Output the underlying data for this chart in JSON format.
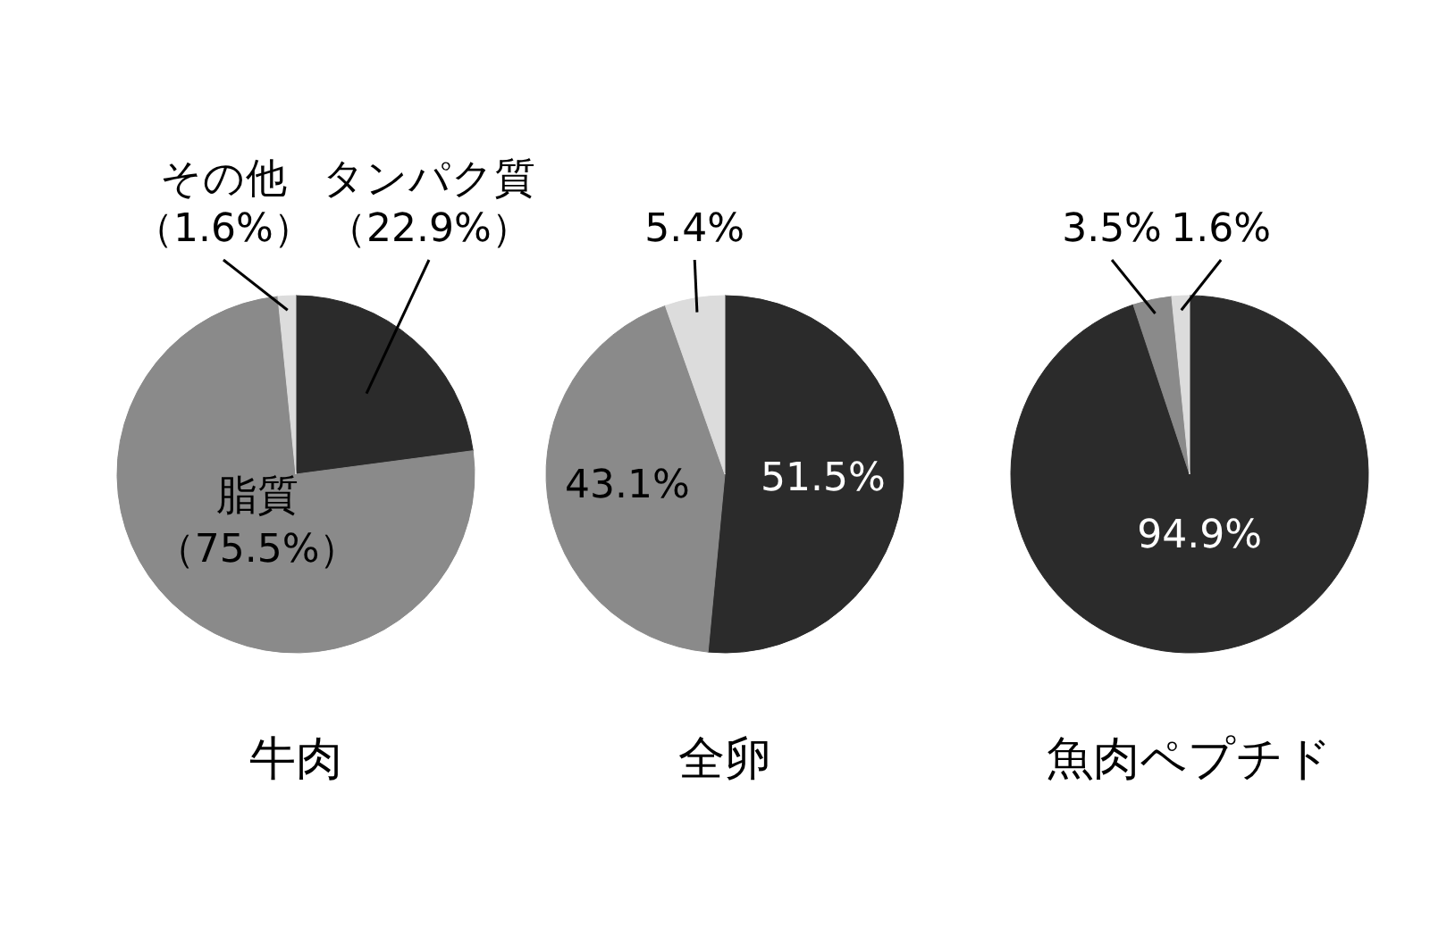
{
  "chart_data": [
    {
      "type": "pie",
      "title": "牛肉",
      "categories": [
        "タンパク質",
        "脂質",
        "その他"
      ],
      "values": [
        22.9,
        75.5,
        1.6
      ],
      "colors": [
        "#2b2b2b",
        "#8a8a8a",
        "#dcdcdc"
      ],
      "value_labels": [
        "（22.9%）",
        "（75.5%）",
        "（1.6%）"
      ]
    },
    {
      "type": "pie",
      "title": "全卵",
      "categories": [
        null,
        null,
        null
      ],
      "values": [
        51.5,
        43.1,
        5.4
      ],
      "colors": [
        "#2b2b2b",
        "#8a8a8a",
        "#dcdcdc"
      ],
      "value_labels": [
        "51.5%",
        "43.1%",
        "5.4%"
      ]
    },
    {
      "type": "pie",
      "title": "魚肉ペプチド",
      "categories": [
        null,
        null,
        null
      ],
      "values": [
        94.9,
        3.5,
        1.6
      ],
      "colors": [
        "#2b2b2b",
        "#8a8a8a",
        "#dcdcdc"
      ],
      "value_labels": [
        "94.9%",
        "3.5%",
        "1.6%"
      ]
    }
  ]
}
